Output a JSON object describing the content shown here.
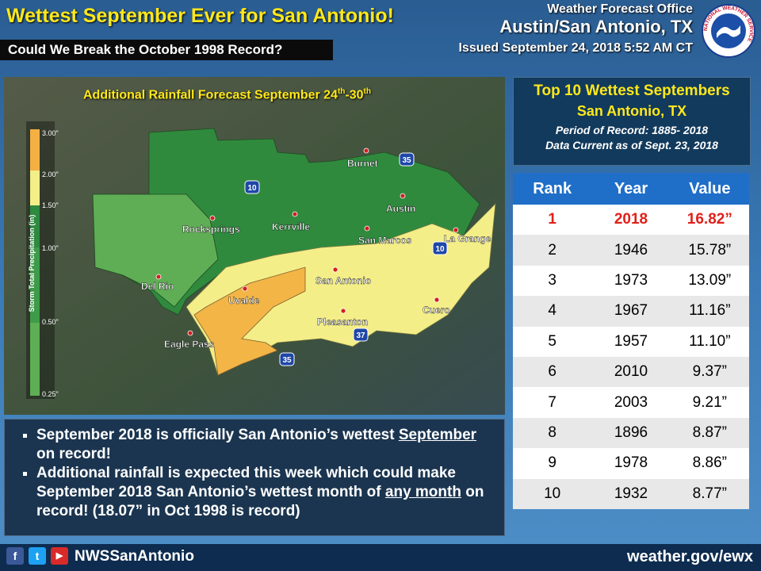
{
  "header": {
    "title": "Wettest September Ever for San Antonio!",
    "subtitle": "Could We Break the October 1998 Record?",
    "office_line1": "Weather Forecast Office",
    "office_line2": "Austin/San Antonio, TX",
    "issued": "Issued September 24, 2018 5:52 AM CT",
    "logo_text": "NATIONAL WEATHER SERVICE"
  },
  "map": {
    "title_parts": [
      "Additional Rainfall Forecast September 24",
      "th",
      "-30",
      "th"
    ],
    "legend": {
      "axis_label": "Storm Total Precipitation (in)",
      "labels": [
        "3.00\"",
        "2.00\"",
        "1.50\"",
        "1.00\"",
        "0.50\"",
        "0.25\""
      ]
    },
    "cities": [
      "Burnet",
      "Austin",
      "Kerrville",
      "Rocksprings",
      "San Marcos",
      "La Grange",
      "Del Rio",
      "Uvalde",
      "San Antonio",
      "Pleasanton",
      "Cuero",
      "Eagle Pass"
    ],
    "highways": [
      "10",
      "35",
      "10",
      "37",
      "35"
    ]
  },
  "info": {
    "title": "Top 10 Wettest Septembers",
    "location": "San Antonio, TX",
    "period": "Period of Record: 1885- 2018",
    "current": "Data Current as of Sept. 23, 2018"
  },
  "table": {
    "headers": [
      "Rank",
      "Year",
      "Value"
    ],
    "rows": [
      [
        1,
        2018,
        "16.82”"
      ],
      [
        2,
        1946,
        "15.78”"
      ],
      [
        3,
        1973,
        "13.09”"
      ],
      [
        4,
        1967,
        "11.16”"
      ],
      [
        5,
        1957,
        "11.10”"
      ],
      [
        6,
        2010,
        "9.37”"
      ],
      [
        7,
        2003,
        "9.21”"
      ],
      [
        8,
        1896,
        "8.87”"
      ],
      [
        9,
        1978,
        "8.86”"
      ],
      [
        10,
        1932,
        "8.77”"
      ]
    ]
  },
  "bullets": [
    [
      "September 2018 is officially San Antonio’s wettest ",
      "September",
      " on record!"
    ],
    [
      "Additional rainfall is expected this week which could make September 2018 San Antonio’s wettest month of ",
      "any month",
      " on record! (18.07” in Oct 1998 is record)"
    ]
  ],
  "footer": {
    "social_icons": [
      "f",
      "t",
      "▶"
    ],
    "handle": "NWSSanAntonio",
    "url": "weather.gov/ewx"
  }
}
